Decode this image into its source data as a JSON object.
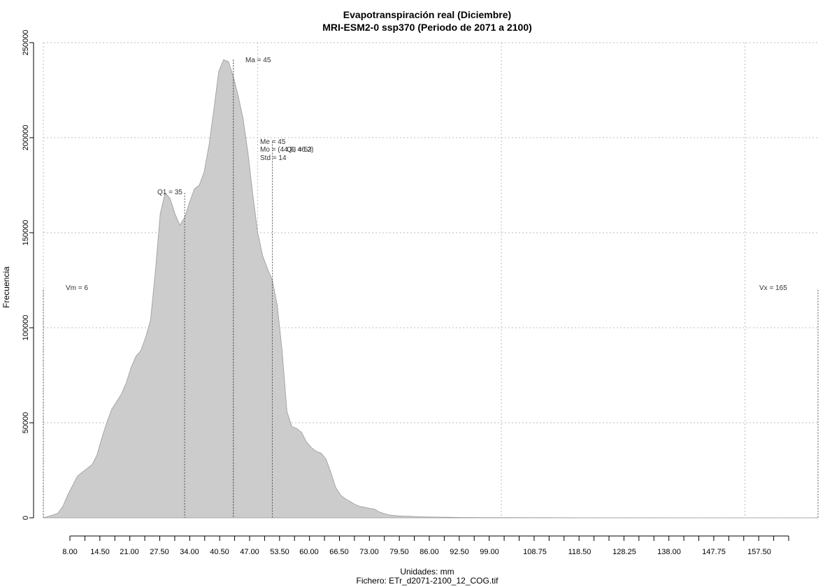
{
  "chart_data": {
    "type": "area",
    "title": "Evapotranspiración real (Diciembre)",
    "subtitle": "MRI-ESM2-0 ssp370 (Periodo de 2071 a 2100)",
    "xlabel": "Unidades: mm",
    "ylabel": "Frecuencia",
    "footer": "Fichero: ETr_d2071-2100_12_COG.tif",
    "xlim": [
      6,
      165
    ],
    "ylim": [
      0,
      250000
    ],
    "grid": true,
    "fill_color": "#cccccc",
    "line_color": "#999999",
    "x_ticks": [
      "8.00",
      "14.50",
      "21.00",
      "27.50",
      "34.00",
      "40.50",
      "47.00",
      "53.50",
      "60.00",
      "66.50",
      "73.00",
      "79.50",
      "86.00",
      "92.50",
      "99.00",
      "108.75",
      "118.50",
      "128.25",
      "138.00",
      "147.75",
      "157.50"
    ],
    "y_ticks": [
      "0",
      "50000",
      "100000",
      "150000",
      "200000",
      "250000"
    ],
    "series": [
      {
        "x": [
          6,
          8,
          9,
          10,
          11,
          12,
          13,
          14,
          15,
          16,
          17,
          18,
          19,
          20,
          21,
          22,
          23,
          24,
          25,
          26,
          27,
          28,
          29,
          30,
          31,
          32,
          33,
          34,
          35,
          36,
          37,
          38,
          39,
          40,
          41,
          42,
          43,
          44,
          45,
          46,
          47,
          48,
          49,
          50,
          51,
          52,
          53,
          54,
          55,
          56,
          57,
          58,
          59,
          60,
          61,
          62,
          63,
          64,
          65,
          66,
          67,
          68,
          69,
          70,
          71,
          72,
          73,
          74,
          75,
          76,
          77,
          78,
          79,
          80,
          81,
          82,
          83,
          84,
          85,
          86,
          87,
          88,
          89,
          90,
          92,
          94,
          96,
          98,
          100,
          102,
          105,
          110,
          115,
          120,
          130,
          140,
          150,
          160,
          165
        ],
        "y": [
          0,
          1500,
          2500,
          6000,
          12000,
          17000,
          22000,
          24000,
          26000,
          28000,
          33000,
          42000,
          50000,
          57000,
          61000,
          65000,
          71000,
          79000,
          85000,
          88000,
          95000,
          104000,
          130000,
          160000,
          171000,
          168000,
          160000,
          154000,
          158000,
          166000,
          173000,
          175000,
          182000,
          196000,
          215000,
          235000,
          241000,
          240000,
          232000,
          222000,
          210000,
          192000,
          170000,
          150000,
          138000,
          131000,
          125000,
          112000,
          88000,
          56000,
          48000,
          47000,
          45000,
          40000,
          37000,
          35000,
          34000,
          31000,
          24000,
          16000,
          12000,
          10000,
          8500,
          7000,
          6000,
          5500,
          5000,
          4500,
          3000,
          2200,
          1500,
          1200,
          1000,
          900,
          800,
          700,
          600,
          500,
          450,
          400,
          350,
          300,
          300,
          250,
          200,
          180,
          160,
          140,
          120,
          100,
          80,
          60,
          40,
          30,
          20,
          10,
          5,
          3,
          0
        ]
      }
    ],
    "stats": {
      "vm": "Vm = 6",
      "q1": "Q1 = 35",
      "ma": "Ma = 45",
      "me": "Me = 45",
      "mo": "Mo = (44.8, 46.2)",
      "q3": "Q3 = 53",
      "std": "Std = 14",
      "vx": "Vx = 165"
    },
    "stat_lines": [
      {
        "name": "vm-line",
        "x": 6,
        "y": 120000
      },
      {
        "name": "q1-line",
        "x": 35,
        "y": 171000
      },
      {
        "name": "ma-line",
        "x": 45,
        "y": 241000
      },
      {
        "name": "me-line",
        "x": 45,
        "y": 241000
      },
      {
        "name": "q3-line",
        "x": 53,
        "y": 198000
      },
      {
        "name": "vx-line",
        "x": 165,
        "y": 120000
      }
    ]
  }
}
